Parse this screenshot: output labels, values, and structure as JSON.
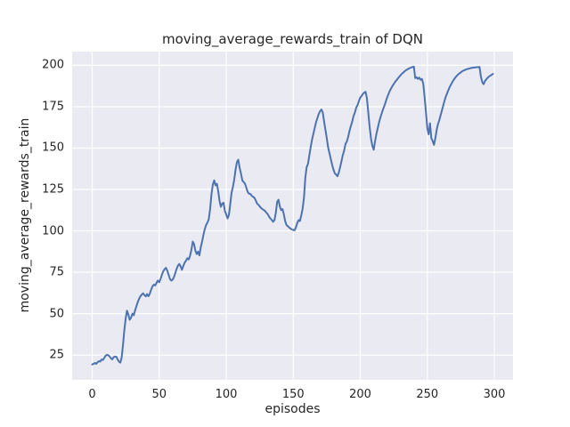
{
  "chart_data": {
    "type": "line",
    "title": "moving_average_rewards_train of DQN",
    "xlabel": "episodes",
    "ylabel": "moving_average_rewards_train",
    "xlim": [
      -14.95,
      313.95
    ],
    "ylim": [
      10,
      208.3
    ],
    "xticks": [
      0,
      50,
      100,
      150,
      200,
      250,
      300
    ],
    "yticks": [
      25,
      50,
      75,
      100,
      125,
      150,
      175,
      200
    ],
    "grid": true,
    "legend_position": "none",
    "style": {
      "line_color": "#4C72B0",
      "axes_background": "#EAEAF2",
      "grid_color": "#FFFFFF",
      "text_color": "#262626",
      "figure_background": "#FFFFFF"
    },
    "series": [
      {
        "name": "moving_average_rewards_train",
        "x_start": 0,
        "x_step": 1,
        "y": [
          19.3,
          19.6,
          20.2,
          19.7,
          20.6,
          21.3,
          21.0,
          22.3,
          22.0,
          23.2,
          24.6,
          25.1,
          24.9,
          24.1,
          23.0,
          22.4,
          23.7,
          24.1,
          23.9,
          22.3,
          21.0,
          20.4,
          23.5,
          31.0,
          40.0,
          47.0,
          51.8,
          49.5,
          46.3,
          47.5,
          50.0,
          49.0,
          52.0,
          54.5,
          57.0,
          59.0,
          60.5,
          61.5,
          62.3,
          61.2,
          60.4,
          61.8,
          60.5,
          62.0,
          64.5,
          66.5,
          67.5,
          67.0,
          68.5,
          70.0,
          69.0,
          71.0,
          73.5,
          75.5,
          76.8,
          77.7,
          76.0,
          73.5,
          71.0,
          70.0,
          70.5,
          72.0,
          74.5,
          77.0,
          79.0,
          80.0,
          78.5,
          76.5,
          78.8,
          80.8,
          82.0,
          83.5,
          82.7,
          85.0,
          88.5,
          93.5,
          92.0,
          88.0,
          86.0,
          87.5,
          85.2,
          90.0,
          93.5,
          97.5,
          101.0,
          103.5,
          105.0,
          107.0,
          113.0,
          122.0,
          128.0,
          130.5,
          127.5,
          128.5,
          124.0,
          118.0,
          114.5,
          116.5,
          117.0,
          112.0,
          110.0,
          107.5,
          109.5,
          116.0,
          123.0,
          126.5,
          131.0,
          137.0,
          141.5,
          143.0,
          138.0,
          134.5,
          130.5,
          129.5,
          128.5,
          126.0,
          123.5,
          122.5,
          122.3,
          121.2,
          120.6,
          120.0,
          118.5,
          116.5,
          115.8,
          114.8,
          113.8,
          113.2,
          112.6,
          112.0,
          111.0,
          110.0,
          108.5,
          107.5,
          106.5,
          105.5,
          106.5,
          111.0,
          117.5,
          118.8,
          114.8,
          112.5,
          113.2,
          110.0,
          105.8,
          103.5,
          102.8,
          102.0,
          101.4,
          100.8,
          100.5,
          100.4,
          102.2,
          104.8,
          106.5,
          106.0,
          109.5,
          113.5,
          120.0,
          132.0,
          138.5,
          140.5,
          145.5,
          150.5,
          155.0,
          158.5,
          162.0,
          165.5,
          168.0,
          170.5,
          172.3,
          173.3,
          171.5,
          166.0,
          161.0,
          156.0,
          150.5,
          147.0,
          143.5,
          140.0,
          137.0,
          134.8,
          134.0,
          133.0,
          135.2,
          138.5,
          142.0,
          145.8,
          148.5,
          152.5,
          154.0,
          157.0,
          160.5,
          163.5,
          166.0,
          169.5,
          171.5,
          174.5,
          176.0,
          178.5,
          180.5,
          181.5,
          182.8,
          183.5,
          184.0,
          180.0,
          171.5,
          163.0,
          156.0,
          151.5,
          149.0,
          154.0,
          158.5,
          162.0,
          165.5,
          168.5,
          171.0,
          173.5,
          175.5,
          178.0,
          180.5,
          182.5,
          184.5,
          186.0,
          187.5,
          188.7,
          190.0,
          191.0,
          192.0,
          193.0,
          194.0,
          194.8,
          195.6,
          196.3,
          197.0,
          197.5,
          198.0,
          198.4,
          198.7,
          199.0,
          199.2,
          192.3,
          192.8,
          191.8,
          192.6,
          191.2,
          191.8,
          189.0,
          181.0,
          172.0,
          162.0,
          158.3,
          165.0,
          156.0,
          154.3,
          152.0,
          156.0,
          161.0,
          164.5,
          167.0,
          170.0,
          173.0,
          176.0,
          179.0,
          181.5,
          183.5,
          185.5,
          187.3,
          188.8,
          190.3,
          191.6,
          192.7,
          193.7,
          194.5,
          195.2,
          195.8,
          196.4,
          196.8,
          197.2,
          197.5,
          197.8,
          198.0,
          198.2,
          198.4,
          198.6,
          198.7,
          198.8,
          198.9,
          198.9,
          199.0,
          193.0,
          189.8,
          188.6,
          190.5,
          191.5,
          192.5,
          193.2,
          193.8,
          194.3,
          194.8
        ]
      }
    ]
  }
}
